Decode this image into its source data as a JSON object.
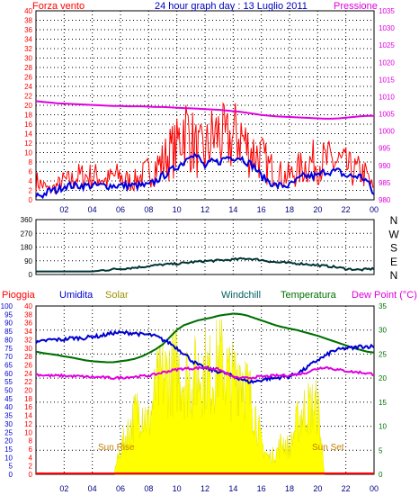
{
  "title": "24 hour graph day : 13 Luglio 2011",
  "x_ticks": [
    "02",
    "04",
    "06",
    "08",
    "10",
    "12",
    "14",
    "16",
    "18",
    "20",
    "22",
    "00"
  ],
  "colors": {
    "wind": "#ff0000",
    "pressure": "#e000e0",
    "avg_wind": "#0000e0",
    "direction": "#003333",
    "rain": "#ff0000",
    "humidity": "#0000d0",
    "solar": "#ffff00",
    "windchill": "#006060",
    "temperature": "#007000",
    "dewpoint": "#e000e0"
  },
  "chart_data": [
    {
      "type": "line",
      "title": "24 hour graph day : 13 Luglio 2011",
      "left_axis_label": "Forza vento",
      "right_axis_label": "Pressione",
      "left_ticks": [
        "0",
        "2",
        "4",
        "6",
        "8",
        "10",
        "12",
        "14",
        "16",
        "18",
        "20",
        "22",
        "24",
        "26",
        "28",
        "30",
        "32",
        "34",
        "36",
        "38",
        "40"
      ],
      "right_ticks": [
        "980",
        "985",
        "990",
        "995",
        "1000",
        "1005",
        "1010",
        "1015",
        "1020",
        "1025",
        "1030",
        "1035"
      ],
      "ylim_left": [
        0,
        40
      ],
      "ylim_right": [
        980,
        1035
      ],
      "x": [
        0,
        0.5,
        1,
        1.5,
        2,
        2.5,
        3,
        3.5,
        4,
        4.5,
        5,
        5.5,
        6,
        6.5,
        7,
        7.5,
        8,
        8.5,
        9,
        9.5,
        10,
        10.5,
        11,
        11.5,
        12,
        12.5,
        13,
        13.5,
        14,
        14.5,
        15,
        15.5,
        16,
        16.5,
        17,
        17.5,
        18,
        18.5,
        19,
        19.5,
        20,
        20.5,
        21,
        21.5,
        22,
        22.5,
        23,
        23.5,
        24
      ],
      "series": [
        {
          "name": "Forza vento",
          "axis": "left",
          "style": "spiky-red",
          "values": [
            4,
            3,
            2,
            3,
            4,
            4,
            5,
            5,
            5,
            5,
            4,
            5,
            5,
            4,
            4,
            5,
            6,
            7,
            8,
            10,
            11,
            16,
            13,
            10,
            10,
            13,
            14,
            12,
            13,
            14,
            11,
            10,
            9,
            7,
            6,
            5,
            5,
            6,
            7,
            8,
            8,
            8,
            8,
            8,
            7,
            6,
            6,
            5,
            2
          ]
        },
        {
          "name": "",
          "axis": "left",
          "style": "avg-blue",
          "values": [
            1,
            1,
            2,
            2,
            3,
            3,
            3,
            3,
            3,
            3,
            3,
            3,
            3,
            3,
            3,
            3,
            3,
            4,
            5,
            6,
            7,
            8,
            10,
            9,
            7,
            8,
            8,
            9,
            9,
            9,
            8,
            7,
            5,
            4,
            3,
            3,
            3,
            4,
            5,
            5,
            5,
            6,
            6,
            6,
            5,
            5,
            5,
            4,
            1
          ]
        },
        {
          "name": "Pressione",
          "axis": "right",
          "style": "pink",
          "values": [
            1008.7,
            1008.5,
            1008.3,
            1008.1,
            1008.0,
            1007.9,
            1007.8,
            1007.7,
            1007.6,
            1007.5,
            1007.4,
            1007.3,
            1007.3,
            1007.2,
            1007.2,
            1007.2,
            1007.1,
            1007.0,
            1007.0,
            1006.9,
            1006.8,
            1006.7,
            1006.6,
            1006.5,
            1006.4,
            1006.3,
            1006.2,
            1006.0,
            1005.8,
            1005.6,
            1005.3,
            1005.0,
            1004.7,
            1004.5,
            1004.3,
            1004.2,
            1004.1,
            1004.0,
            1003.9,
            1003.8,
            1003.7,
            1003.6,
            1003.6,
            1003.7,
            1003.9,
            1004.1,
            1004.3,
            1004.4,
            1004.4
          ]
        }
      ]
    },
    {
      "type": "line",
      "left_ticks": [
        "0",
        "90",
        "180",
        "270",
        "360"
      ],
      "right_labels": [
        "N",
        "W",
        "S",
        "E",
        "N"
      ],
      "ylim": [
        0,
        360
      ],
      "x": [
        0,
        1,
        2,
        3,
        4,
        5,
        6,
        7,
        8,
        9,
        10,
        11,
        12,
        13,
        14,
        15,
        16,
        17,
        18,
        19,
        20,
        21,
        22,
        23,
        24
      ],
      "series": [
        {
          "name": "",
          "style": "direction",
          "values": [
            20,
            20,
            20,
            20,
            20,
            30,
            38,
            45,
            55,
            65,
            70,
            80,
            88,
            92,
            98,
            105,
            95,
            80,
            75,
            70,
            60,
            52,
            38,
            30,
            38
          ]
        }
      ]
    },
    {
      "type": "area",
      "labels": {
        "rain": "Pioggia",
        "humidity": "Umidita",
        "solar": "Solar",
        "windchill": "Windchill",
        "temperature": "Temperatura",
        "dewpoint": "Dew Point (°C)",
        "sunrise": "Sun Rise",
        "sunset": "Sun Set"
      },
      "humidity_ticks": [
        "0",
        "5",
        "10",
        "15",
        "20",
        "25",
        "30",
        "35",
        "40",
        "45",
        "50",
        "55",
        "60",
        "65",
        "70",
        "75",
        "80",
        "85",
        "90",
        "95",
        "100"
      ],
      "rain_ticks": [
        "0",
        "2",
        "4",
        "6",
        "8",
        "10",
        "12",
        "14",
        "16",
        "18",
        "20",
        "22",
        "24",
        "26",
        "28",
        "30",
        "32",
        "34",
        "36",
        "38",
        "40"
      ],
      "temp_ticks": [
        "0",
        "5",
        "10",
        "15",
        "20",
        "25",
        "30",
        "35"
      ],
      "ylim_humidity": [
        0,
        100
      ],
      "ylim_temp": [
        0,
        35
      ],
      "sunrise_hour": 5.6,
      "sunset_hour": 20.5,
      "x": [
        0,
        0.5,
        1,
        1.5,
        2,
        2.5,
        3,
        3.5,
        4,
        4.5,
        5,
        5.5,
        6,
        6.5,
        7,
        7.5,
        8,
        8.5,
        9,
        9.5,
        10,
        10.5,
        11,
        11.5,
        12,
        12.5,
        13,
        13.5,
        14,
        14.5,
        15,
        15.5,
        16,
        16.5,
        17,
        17.5,
        18,
        18.5,
        19,
        19.5,
        20,
        20.5,
        21,
        21.5,
        22,
        22.5,
        23,
        23.5,
        24
      ],
      "series": [
        {
          "name": "Solar",
          "axis": "solar",
          "values": [
            0,
            0,
            0,
            0,
            0,
            0,
            0,
            0,
            0,
            0,
            0,
            0,
            15,
            25,
            35,
            40,
            30,
            50,
            58,
            60,
            62,
            58,
            55,
            60,
            62,
            58,
            70,
            60,
            55,
            65,
            50,
            40,
            18,
            10,
            12,
            20,
            15,
            30,
            38,
            40,
            40,
            0,
            0,
            0,
            0,
            0,
            0,
            0,
            0
          ]
        },
        {
          "name": "Temperatura",
          "axis": "temp",
          "values": [
            25.5,
            25.2,
            25.0,
            24.8,
            24.5,
            24.3,
            24.0,
            23.7,
            23.5,
            23.4,
            23.3,
            23.3,
            23.5,
            23.7,
            24.0,
            24.5,
            25.2,
            26.0,
            27.0,
            28.5,
            30.0,
            31.0,
            31.5,
            32.0,
            32.3,
            32.6,
            33.0,
            33.2,
            33.4,
            33.3,
            33.0,
            32.5,
            32.0,
            31.5,
            31.0,
            30.6,
            30.3,
            30.0,
            29.6,
            29.2,
            28.8,
            28.3,
            27.8,
            27.3,
            26.8,
            26.3,
            25.9,
            25.5,
            25.3
          ]
        },
        {
          "name": "Windchill",
          "axis": "temp",
          "values": [
            25.5,
            25.2,
            25.0,
            24.8,
            24.5,
            24.3,
            24.0,
            23.7,
            23.5,
            23.4,
            23.3,
            23.3,
            23.5,
            23.7,
            24.0,
            24.5,
            25.2,
            26.0,
            27.0,
            28.5,
            30.0,
            31.0,
            31.5,
            32.0,
            32.3,
            32.6,
            33.0,
            33.2,
            33.4,
            33.3,
            33.0,
            32.5,
            32.0,
            31.5,
            31.0,
            30.6,
            30.3,
            30.0,
            29.6,
            29.2,
            28.8,
            28.3,
            27.8,
            27.3,
            26.8,
            26.3,
            25.9,
            25.5,
            25.3
          ]
        },
        {
          "name": "Umidita",
          "axis": "humidity",
          "values": [
            78,
            79,
            80,
            80,
            80,
            81,
            81,
            81,
            82,
            82,
            83,
            84,
            84,
            84,
            84,
            83,
            83,
            82,
            80,
            78,
            75,
            72,
            68,
            65,
            63,
            62,
            61,
            60,
            58,
            57,
            55,
            55,
            56,
            57,
            57,
            58,
            58,
            60,
            62,
            65,
            68,
            70,
            73,
            74,
            75,
            75,
            76,
            76,
            76
          ]
        },
        {
          "name": "Dew Point (°C)",
          "axis": "temp",
          "values": [
            20.8,
            20.6,
            20.5,
            20.5,
            20.5,
            20.4,
            20.4,
            20.3,
            20.2,
            20.2,
            20.1,
            20.0,
            20.1,
            20.2,
            20.3,
            20.4,
            20.5,
            20.8,
            21.2,
            21.5,
            21.8,
            22.0,
            22.0,
            22.1,
            22.2,
            22.0,
            21.8,
            21.0,
            20.2,
            20.0,
            20.0,
            20.2,
            20.3,
            20.4,
            20.5,
            20.5,
            20.6,
            20.8,
            21.0,
            21.5,
            22.0,
            22.3,
            22.0,
            21.7,
            21.5,
            21.3,
            21.2,
            21.0,
            20.8
          ]
        },
        {
          "name": "Pioggia",
          "axis": "rain",
          "values": [
            0,
            0,
            0,
            0,
            0,
            0,
            0,
            0,
            0,
            0,
            0,
            0,
            0,
            0,
            0,
            0,
            0,
            0,
            0,
            0,
            0,
            0,
            0,
            0,
            0,
            0,
            0,
            0,
            0,
            0,
            0,
            0,
            0,
            0,
            0,
            0,
            0,
            0,
            0,
            0,
            0,
            0,
            0,
            0,
            0,
            0,
            0,
            0,
            0
          ]
        }
      ]
    }
  ]
}
